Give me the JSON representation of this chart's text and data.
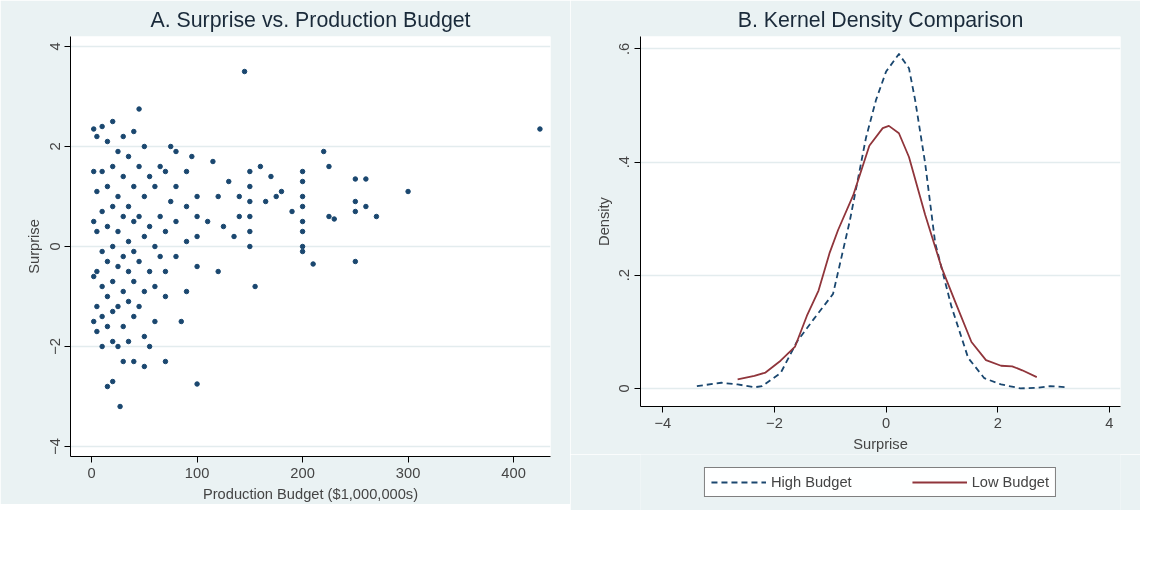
{
  "chart_data": [
    {
      "type": "scatter",
      "title": "A. Surprise vs. Production Budget",
      "xlabel": "Production Budget ($1,000,000s)",
      "ylabel": "Surprise",
      "color": "#1a476f",
      "marker": "circle",
      "grid": "y",
      "xlim": [
        -20,
        435
      ],
      "ylim": [
        -4.2,
        4.2
      ],
      "xticks": [
        0,
        100,
        200,
        300,
        400
      ],
      "yticks": [
        -4,
        -2,
        0,
        2,
        4
      ],
      "x": [
        425,
        145,
        300,
        100,
        27,
        45,
        250,
        270,
        250,
        260,
        250,
        250,
        260,
        220,
        225,
        230,
        225,
        210,
        200,
        200,
        200,
        200,
        200,
        200,
        200,
        200,
        180,
        190,
        175,
        170,
        160,
        165,
        150,
        150,
        150,
        150,
        150,
        150,
        155,
        140,
        140,
        135,
        130,
        125,
        120,
        120,
        115,
        110,
        100,
        100,
        100,
        100,
        95,
        90,
        90,
        90,
        90,
        85,
        80,
        80,
        80,
        80,
        75,
        75,
        70,
        70,
        70,
        70,
        70,
        65,
        65,
        65,
        60,
        60,
        60,
        60,
        55,
        55,
        55,
        55,
        50,
        50,
        50,
        50,
        50,
        50,
        45,
        45,
        45,
        45,
        40,
        40,
        40,
        40,
        40,
        40,
        40,
        35,
        35,
        35,
        35,
        35,
        35,
        30,
        30,
        30,
        30,
        30,
        30,
        30,
        25,
        25,
        25,
        25,
        25,
        25,
        20,
        20,
        20,
        20,
        20,
        20,
        20,
        20,
        15,
        15,
        15,
        15,
        15,
        15,
        15,
        10,
        10,
        10,
        10,
        10,
        10,
        10,
        5,
        5,
        5,
        5,
        5,
        5,
        2,
        2,
        2,
        2,
        2
      ],
      "values": [
        2.35,
        3.5,
        1.1,
        -2.75,
        -3.2,
        2.75,
        -0.3,
        0.6,
        1.35,
        1.35,
        0.9,
        0.7,
        0.8,
        1.9,
        1.6,
        0.55,
        0.6,
        -0.35,
        1.5,
        1.3,
        1.0,
        0.8,
        0.5,
        0.3,
        0.0,
        -0.1,
        1.1,
        0.7,
        1.0,
        1.4,
        1.6,
        0.9,
        1.5,
        1.2,
        0.9,
        0.6,
        0.3,
        0.0,
        -0.8,
        0.6,
        1.0,
        0.2,
        1.3,
        0.4,
        -0.5,
        1.0,
        1.7,
        0.5,
        1.0,
        0.6,
        0.2,
        -0.4,
        1.8,
        1.5,
        0.8,
        0.1,
        -0.9,
        -1.5,
        1.9,
        1.2,
        0.5,
        -0.2,
        2.0,
        0.9,
        1.5,
        0.3,
        -0.5,
        -1.0,
        -2.3,
        1.6,
        0.6,
        -0.2,
        1.2,
        0.0,
        -0.8,
        -1.5,
        1.4,
        0.4,
        -0.5,
        -2.0,
        2.0,
        1.0,
        0.2,
        -0.9,
        -1.8,
        -2.4,
        1.6,
        0.6,
        -0.3,
        -1.2,
        2.3,
        1.2,
        0.5,
        -0.1,
        -0.7,
        -1.4,
        -2.3,
        1.8,
        0.8,
        0.1,
        -0.5,
        -1.1,
        -1.9,
        2.2,
        1.4,
        0.6,
        -0.2,
        -0.9,
        -1.6,
        -2.3,
        1.9,
        1.0,
        0.3,
        -0.4,
        -1.2,
        -2.0,
        2.5,
        1.6,
        0.8,
        0.0,
        -0.7,
        -1.3,
        -1.9,
        -2.7,
        2.1,
        1.2,
        0.4,
        -0.3,
        -1.0,
        -1.6,
        -2.8,
        2.4,
        1.5,
        0.7,
        -0.1,
        -0.8,
        -1.4,
        -2.0,
        2.2,
        1.1,
        0.3,
        -0.5,
        -1.2,
        -1.7,
        2.35,
        1.5,
        0.5,
        -0.6,
        -1.5
      ]
    },
    {
      "type": "line",
      "title": "B. Kernel Density Comparison",
      "xlabel": "Surprise",
      "ylabel": "Density",
      "grid": "y",
      "legend": "bottom",
      "xlim": [
        -4.4,
        4.2
      ],
      "ylim": [
        -0.032,
        0.622
      ],
      "xticks": [
        -4,
        -2,
        0,
        2,
        4
      ],
      "yticks": [
        0,
        {
          "value": 0.2,
          "label": ".2"
        },
        {
          "value": 0.4,
          "label": ".4"
        },
        {
          "value": 0.6,
          "label": ".6"
        }
      ],
      "series": [
        {
          "name": "High Budget",
          "color": "#1a476f",
          "line_style": "dashed",
          "x": [
            -3.39,
            -2.95,
            -2.66,
            -2.36,
            -2.22,
            -1.89,
            -1.6,
            -1.3,
            -0.95,
            -0.65,
            -0.36,
            -0.18,
            0.0,
            0.23,
            0.41,
            0.52,
            0.7,
            0.88,
            1.17,
            1.47,
            1.76,
            2.06,
            2.41,
            2.7,
            2.94,
            3.23
          ],
          "values": [
            0.004,
            0.01,
            0.007,
            0.002,
            0.004,
            0.027,
            0.082,
            0.122,
            0.167,
            0.296,
            0.443,
            0.51,
            0.56,
            0.591,
            0.566,
            0.51,
            0.398,
            0.257,
            0.145,
            0.054,
            0.018,
            0.007,
            0.0,
            0.001,
            0.004,
            0.002
          ]
        },
        {
          "name": "Low Budget",
          "color": "#90353b",
          "line_style": "solid",
          "x": [
            -2.66,
            -2.36,
            -2.16,
            -1.89,
            -1.63,
            -1.42,
            -1.21,
            -1.01,
            -0.86,
            -0.59,
            -0.3,
            -0.06,
            0.05,
            0.23,
            0.41,
            0.7,
            1.0,
            1.23,
            1.53,
            1.79,
            2.06,
            2.26,
            2.44,
            2.7
          ],
          "values": [
            0.016,
            0.022,
            0.028,
            0.049,
            0.074,
            0.128,
            0.173,
            0.24,
            0.28,
            0.341,
            0.429,
            0.46,
            0.464,
            0.451,
            0.409,
            0.307,
            0.212,
            0.155,
            0.082,
            0.05,
            0.04,
            0.039,
            0.032,
            0.02
          ]
        }
      ]
    }
  ]
}
